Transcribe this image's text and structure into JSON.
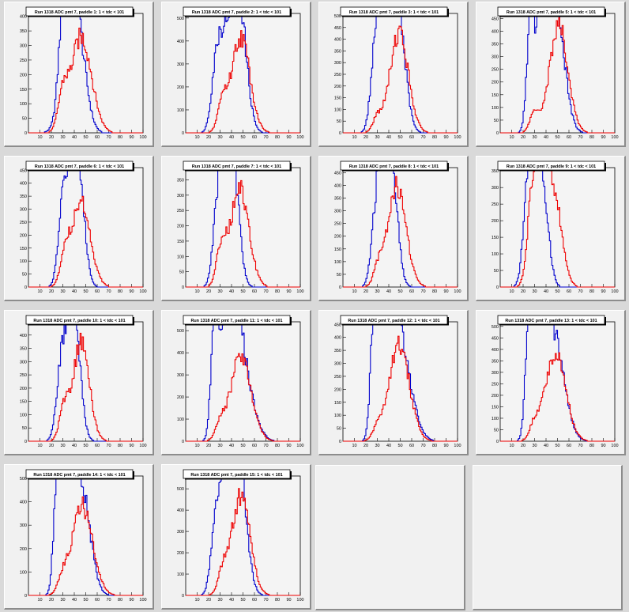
{
  "canvas": {
    "background": "#d9d9d9",
    "frame_fill": "#f1f1f1"
  },
  "colors": {
    "series_a": "#0000cc",
    "series_b": "#ee0000"
  },
  "chart_data": [
    {
      "type": "histogram",
      "title": "Run 1318 ADC pmt 7, paddle 1: 1 < tdc < 101",
      "xlim": [
        0,
        100
      ],
      "ylim": [
        0,
        410
      ],
      "xticks": [
        10,
        20,
        30,
        40,
        50,
        60,
        70,
        80,
        90,
        100
      ],
      "yticks": [
        0,
        50,
        100,
        150,
        200,
        250,
        300,
        350,
        400
      ],
      "series": [
        {
          "peaks": [
            [
              24,
              18,
              5
            ],
            [
              30,
              270,
              4
            ],
            [
              36,
              340,
              5
            ],
            [
              43,
              330,
              7
            ]
          ]
        },
        {
          "peaks": [
            [
              30,
              110,
              4
            ],
            [
              46,
              330,
              9
            ]
          ]
        }
      ]
    },
    {
      "type": "histogram",
      "title": "Run 1318 ADC pmt 7, paddle 2: 1 < tdc < 101",
      "xlim": [
        0,
        100
      ],
      "ylim": [
        0,
        520
      ],
      "xticks": [
        10,
        20,
        30,
        40,
        50,
        60,
        70,
        80,
        90,
        100
      ],
      "yticks": [
        0,
        100,
        200,
        300,
        400,
        500
      ],
      "series": [
        {
          "peaks": [
            [
              26,
              250,
              4
            ],
            [
              32,
              290,
              4
            ],
            [
              41,
              430,
              5
            ],
            [
              48,
              440,
              6
            ]
          ]
        },
        {
          "peaks": [
            [
              32,
              120,
              4
            ],
            [
              48,
              420,
              8
            ]
          ]
        }
      ]
    },
    {
      "type": "histogram",
      "title": "Run 1318 ADC pmt 7, paddle 3: 1 < tdc < 101",
      "xlim": [
        0,
        100
      ],
      "ylim": [
        0,
        510
      ],
      "xticks": [
        10,
        20,
        30,
        40,
        50,
        60,
        70,
        80,
        90,
        100
      ],
      "yticks": [
        0,
        50,
        100,
        150,
        200,
        250,
        300,
        350,
        400,
        450,
        500
      ],
      "series": [
        {
          "peaks": [
            [
              28,
              300,
              4
            ],
            [
              34,
              380,
              4
            ],
            [
              41,
              470,
              5
            ],
            [
              49,
              430,
              6
            ]
          ]
        },
        {
          "peaks": [
            [
              30,
              60,
              4
            ],
            [
              49,
              430,
              8
            ]
          ]
        }
      ]
    },
    {
      "type": "histogram",
      "title": "Run 1318 ADC pmt 7, paddle 5: 1 < tdc < 101",
      "xlim": [
        0,
        100
      ],
      "ylim": [
        0,
        470
      ],
      "xticks": [
        10,
        20,
        30,
        40,
        50,
        60,
        70,
        80,
        90,
        100
      ],
      "yticks": [
        0,
        50,
        100,
        150,
        200,
        250,
        300,
        350,
        400,
        450
      ],
      "series": [
        {
          "peaks": [
            [
              26,
              370,
              3
            ],
            [
              34,
              360,
              5
            ],
            [
              43,
              430,
              5
            ],
            [
              50,
              400,
              7
            ]
          ]
        },
        {
          "peaks": [
            [
              30,
              80,
              4
            ],
            [
              51,
              420,
              8
            ]
          ]
        }
      ]
    },
    {
      "type": "histogram",
      "title": "Run 1318 ADC pmt 7, paddle 6: 1 < tdc < 101",
      "xlim": [
        0,
        100
      ],
      "ylim": [
        0,
        460
      ],
      "xticks": [
        10,
        20,
        30,
        40,
        50,
        60,
        70,
        80,
        90,
        100
      ],
      "yticks": [
        0,
        50,
        100,
        150,
        200,
        250,
        300,
        350,
        400,
        450
      ],
      "series": [
        {
          "peaks": [
            [
              30,
              300,
              4
            ],
            [
              37,
              320,
              4
            ],
            [
              44,
              420,
              5
            ]
          ]
        },
        {
          "peaks": [
            [
              32,
              110,
              4
            ],
            [
              46,
              330,
              8
            ]
          ]
        }
      ]
    },
    {
      "type": "histogram",
      "title": "Run 1318 ADC pmt 7, paddle 7: 1 < tdc < 101",
      "xlim": [
        0,
        100
      ],
      "ylim": [
        0,
        390
      ],
      "xticks": [
        10,
        20,
        30,
        40,
        50,
        60,
        70,
        80,
        90,
        100
      ],
      "yticks": [
        0,
        50,
        100,
        150,
        200,
        250,
        300,
        350
      ],
      "series": [
        {
          "peaks": [
            [
              28,
              270,
              4
            ],
            [
              35,
              320,
              4
            ],
            [
              42,
              360,
              5
            ]
          ]
        },
        {
          "peaks": [
            [
              31,
              120,
              4
            ],
            [
              47,
              320,
              8
            ]
          ]
        }
      ]
    },
    {
      "type": "histogram",
      "title": "Run 1318 ADC pmt 7, paddle 8: 1 < tdc < 101",
      "xlim": [
        0,
        100
      ],
      "ylim": [
        0,
        470
      ],
      "xticks": [
        10,
        20,
        30,
        40,
        50,
        60,
        70,
        80,
        90,
        100
      ],
      "yticks": [
        0,
        50,
        100,
        150,
        200,
        250,
        300,
        350,
        400,
        450
      ],
      "series": [
        {
          "peaks": [
            [
              29,
              300,
              4
            ],
            [
              36,
              390,
              4
            ],
            [
              43,
              420,
              5
            ]
          ]
        },
        {
          "peaks": [
            [
              31,
              70,
              4
            ],
            [
              47,
              400,
              8
            ]
          ]
        }
      ]
    },
    {
      "type": "histogram",
      "title": "Run 1318 ADC pmt 7, paddle 9: 1 < tdc < 101",
      "xlim": [
        0,
        100
      ],
      "ylim": [
        0,
        360
      ],
      "xticks": [
        10,
        20,
        30,
        40,
        50,
        60,
        70,
        80,
        90,
        100
      ],
      "yticks": [
        0,
        50,
        100,
        150,
        200,
        250,
        300,
        350
      ],
      "series": [
        {
          "peaks": [
            [
              24,
              260,
              4
            ],
            [
              30,
              280,
              4
            ],
            [
              37,
              300,
              5
            ]
          ]
        },
        {
          "peaks": [
            [
              27,
              200,
              4
            ],
            [
              35,
              290,
              5
            ],
            [
              46,
              300,
              7
            ]
          ]
        }
      ]
    },
    {
      "type": "histogram",
      "title": "Run 1318 ADC pmt 7, paddle 10: 1 < tdc < 101",
      "xlim": [
        0,
        100
      ],
      "ylim": [
        0,
        450
      ],
      "xticks": [
        10,
        20,
        30,
        40,
        50,
        60,
        70,
        80,
        90,
        100
      ],
      "yticks": [
        0,
        50,
        100,
        150,
        200,
        250,
        300,
        350,
        400
      ],
      "series": [
        {
          "peaks": [
            [
              28,
              250,
              4
            ],
            [
              35,
              270,
              4
            ],
            [
              41,
              380,
              5
            ]
          ]
        },
        {
          "peaks": [
            [
              31,
              120,
              4
            ],
            [
              46,
              370,
              7
            ]
          ]
        }
      ]
    },
    {
      "type": "histogram",
      "title": "Run 1318 ADC pmt 7, paddle 11: 1 < tdc < 101",
      "xlim": [
        0,
        100
      ],
      "ylim": [
        0,
        540
      ],
      "xticks": [
        10,
        20,
        30,
        40,
        50,
        60,
        70,
        80,
        90,
        100
      ],
      "yticks": [
        0,
        100,
        200,
        300,
        400,
        500
      ],
      "series": [
        {
          "peaks": [
            [
              25,
              490,
              3
            ],
            [
              33,
              360,
              5
            ],
            [
              42,
              400,
              6
            ],
            [
              50,
              300,
              9
            ]
          ]
        },
        {
          "peaks": [
            [
              30,
              60,
              4
            ],
            [
              48,
              380,
              9
            ]
          ]
        }
      ]
    },
    {
      "type": "histogram",
      "title": "Run 1318 ADC pmt 7, paddle 12: 1 < tdc < 101",
      "xlim": [
        0,
        100
      ],
      "ylim": [
        0,
        460
      ],
      "xticks": [
        10,
        20,
        30,
        40,
        50,
        60,
        70,
        80,
        90,
        100
      ],
      "yticks": [
        0,
        50,
        100,
        150,
        200,
        250,
        300,
        350,
        400,
        450
      ],
      "series": [
        {
          "peaks": [
            [
              27,
              420,
              3
            ],
            [
              33,
              350,
              4
            ],
            [
              42,
              420,
              6
            ],
            [
              52,
              300,
              9
            ]
          ]
        },
        {
          "peaks": [
            [
              30,
              40,
              4
            ],
            [
              49,
              370,
              9
            ]
          ]
        }
      ]
    },
    {
      "type": "histogram",
      "title": "Run 1318 ADC pmt 7, paddle 13: 1 < tdc < 101",
      "xlim": [
        0,
        100
      ],
      "ylim": [
        0,
        520
      ],
      "xticks": [
        10,
        20,
        30,
        40,
        50,
        60,
        70,
        80,
        90,
        100
      ],
      "yticks": [
        0,
        50,
        100,
        150,
        200,
        250,
        300,
        350,
        400,
        450,
        500
      ],
      "series": [
        {
          "peaks": [
            [
              25,
              470,
              3
            ],
            [
              32,
              360,
              5
            ],
            [
              40,
              380,
              6
            ],
            [
              50,
              330,
              8
            ]
          ]
        },
        {
          "peaks": [
            [
              30,
              60,
              4
            ],
            [
              48,
              380,
              9
            ]
          ]
        }
      ]
    },
    {
      "type": "histogram",
      "title": "Run 1318 ADC pmt 7, paddle 14: 1 < tdc < 101",
      "xlim": [
        0,
        100
      ],
      "ylim": [
        0,
        510
      ],
      "xticks": [
        10,
        20,
        30,
        40,
        50,
        60,
        70,
        80,
        90,
        100
      ],
      "yticks": [
        0,
        100,
        200,
        300,
        400,
        500
      ],
      "series": [
        {
          "peaks": [
            [
              25,
              460,
              3
            ],
            [
              31,
              420,
              4
            ],
            [
              39,
              410,
              5
            ],
            [
              48,
              380,
              7
            ]
          ]
        },
        {
          "peaks": [
            [
              30,
              60,
              4
            ],
            [
              47,
              380,
              9
            ]
          ]
        }
      ]
    },
    {
      "type": "histogram",
      "title": "Run 1318 ADC pmt 7, paddle 15: 1 < tdc < 101",
      "xlim": [
        0,
        100
      ],
      "ylim": [
        0,
        560
      ],
      "xticks": [
        10,
        20,
        30,
        40,
        50,
        60,
        70,
        80,
        90,
        100
      ],
      "yticks": [
        0,
        100,
        200,
        300,
        400,
        500
      ],
      "series": [
        {
          "peaks": [
            [
              26,
              330,
              4
            ],
            [
              33,
              410,
              4
            ],
            [
              41,
              470,
              5
            ],
            [
              48,
              480,
              6
            ]
          ]
        },
        {
          "peaks": [
            [
              32,
              90,
              4
            ],
            [
              48,
              470,
              8
            ]
          ]
        }
      ]
    }
  ]
}
